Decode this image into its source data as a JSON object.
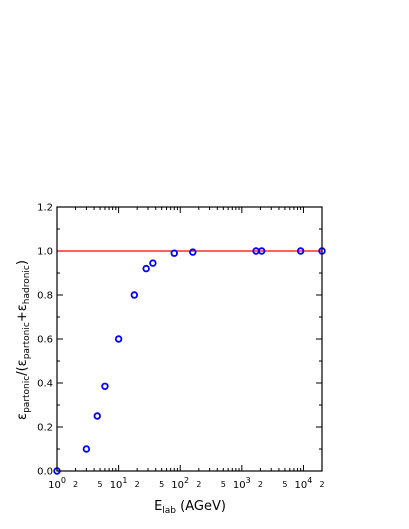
{
  "chart_data": {
    "type": "scatter",
    "title": "",
    "xlabel": {
      "main": "E",
      "sub": "lab",
      "rest": " (AGeV)"
    },
    "ylabel": {
      "e1": "ε",
      "sub1": "partonic",
      "mid": "/(",
      "e2": "ε",
      "sub2": "partonic",
      "plus": "+",
      "e3": "ε",
      "sub3": "hadronic",
      "close": ")"
    },
    "x_scale": "log",
    "xlim": [
      1,
      20000
    ],
    "ylim": [
      0,
      1.2
    ],
    "y_ticks": [
      "0.0",
      "0.2",
      "0.4",
      "0.6",
      "0.8",
      "1.0",
      "1.2"
    ],
    "x_major_ticks": [
      {
        "value": 1,
        "base": "10",
        "exp": "0"
      },
      {
        "value": 10,
        "base": "10",
        "exp": "1"
      },
      {
        "value": 100,
        "base": "10",
        "exp": "2"
      },
      {
        "value": 1000,
        "base": "10",
        "exp": "3"
      },
      {
        "value": 10000,
        "base": "10",
        "exp": "4"
      }
    ],
    "x_minor_tick_labels": [
      "2",
      "5",
      "2",
      "5",
      "2",
      "5",
      "2",
      "5",
      "2"
    ],
    "reference_line": {
      "y": 1.0,
      "color": "#ff0000"
    },
    "series": [
      {
        "marker": "open-circle",
        "color": "#0000ff",
        "x": [
          1.0,
          3.0,
          4.5,
          6.0,
          10.0,
          18.0,
          28.0,
          36.0,
          80.0,
          160.0,
          1700.0,
          2100.0,
          9000.0,
          20000.0
        ],
        "y": [
          0.0,
          0.1,
          0.25,
          0.385,
          0.6,
          0.8,
          0.92,
          0.945,
          0.99,
          0.995,
          1.0,
          1.0,
          1.0,
          1.0
        ]
      }
    ]
  }
}
